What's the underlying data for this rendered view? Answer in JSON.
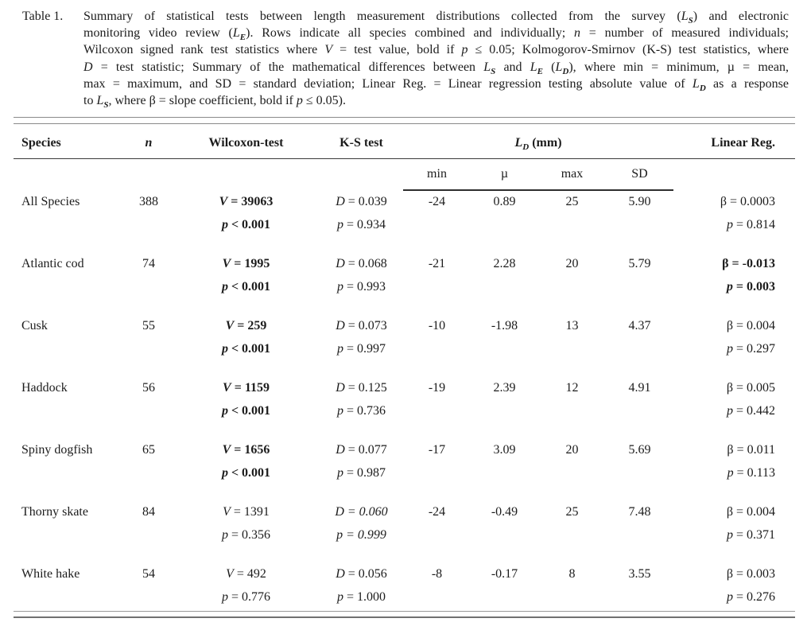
{
  "colors": {
    "background": "#ffffff",
    "text": "#1c1c1c",
    "rule_light": "#8a8a8a",
    "rule_dark": "#3a3a3a"
  },
  "caption": {
    "label": "Table 1.",
    "lines": [
      [
        {
          "t": "Summary of statistical tests between length measurement distributions collected from the survey ("
        },
        {
          "t": "L",
          "s": "i"
        },
        {
          "t": "S",
          "s": "isub"
        },
        {
          "t": ") and electronic"
        }
      ],
      [
        {
          "t": "monitoring video review ("
        },
        {
          "t": "L",
          "s": "i"
        },
        {
          "t": "E",
          "s": "isub"
        },
        {
          "t": "). Rows indicate all species combined and individually; "
        },
        {
          "t": "n",
          "s": "i"
        },
        {
          "t": " = number of measured individuals;"
        }
      ],
      [
        {
          "t": "Wilcoxon signed rank test statistics where "
        },
        {
          "t": "V",
          "s": "i"
        },
        {
          "t": " = test value, bold if "
        },
        {
          "t": "p",
          "s": "i"
        },
        {
          "t": " ≤ 0.05; Kolmogorov-Smirnov (K-S) test statistics, where"
        }
      ],
      [
        {
          "t": "D",
          "s": "i"
        },
        {
          "t": " = test statistic; Summary of the mathematical differences between "
        },
        {
          "t": "L",
          "s": "i"
        },
        {
          "t": "S",
          "s": "isub"
        },
        {
          "t": " and "
        },
        {
          "t": "L",
          "s": "i"
        },
        {
          "t": "E",
          "s": "isub"
        },
        {
          "t": " ("
        },
        {
          "t": "L",
          "s": "i"
        },
        {
          "t": "D",
          "s": "isub"
        },
        {
          "t": "), where min = minimum, µ = mean,"
        }
      ],
      [
        {
          "t": "max = maximum, and SD = standard deviation; Linear Reg. = Linear regression testing absolute value of "
        },
        {
          "t": "L",
          "s": "i"
        },
        {
          "t": "D",
          "s": "isub"
        },
        {
          "t": " as a response"
        }
      ],
      [
        {
          "t": "to "
        },
        {
          "t": "L",
          "s": "i"
        },
        {
          "t": "S",
          "s": "isub"
        },
        {
          "t": ", where β = slope coefficient, bold if "
        },
        {
          "t": "p",
          "s": "i"
        },
        {
          "t": " ≤ 0.05)."
        }
      ]
    ]
  },
  "table": {
    "header": {
      "species": "Species",
      "n": "n",
      "wilcoxon": "Wilcoxon-test",
      "ks": "K-S test",
      "ld": [
        {
          "t": "L",
          "s": "ib"
        },
        {
          "t": "D",
          "s": "ibsub"
        }
      ],
      "ld_unit": "(mm)",
      "linreg": "Linear Reg.",
      "sub": {
        "min": "min",
        "mu": "µ",
        "max": "max",
        "sd": "SD"
      }
    },
    "rows": [
      {
        "species": "All Species",
        "n": "388",
        "w_sym": "V",
        "w_val": "= 39063",
        "wp_sym": "p",
        "wp_val": "< 0.001",
        "k_sym": "D",
        "k_val": "= 0.039",
        "kp_sym": "p",
        "kp_val": "= 0.934",
        "min": "-24",
        "mu": "0.89",
        "max": "25",
        "sd": "5.90",
        "b_sym": "β",
        "b_val": "= 0.0003",
        "bp_sym": "p",
        "bp_val": "= 0.814"
      },
      {
        "species": "Atlantic cod",
        "n": "74",
        "w_sym": "V",
        "w_val": "= 1995",
        "wp_sym": "p",
        "wp_val": "< 0.001",
        "k_sym": "D",
        "k_val": "= 0.068",
        "kp_sym": "p",
        "kp_val": "= 0.993",
        "min": "-21",
        "mu": "2.28",
        "max": "20",
        "sd": "5.79",
        "b_sym": "β",
        "b_val": "= -0.013",
        "bp_sym": "p",
        "bp_val": "= 0.003"
      },
      {
        "species": "Cusk",
        "n": "55",
        "w_sym": "V",
        "w_val": "= 259",
        "wp_sym": "p",
        "wp_val": "< 0.001",
        "k_sym": "D",
        "k_val": "= 0.073",
        "kp_sym": "p",
        "kp_val": "= 0.997",
        "min": "-10",
        "mu": "-1.98",
        "max": "13",
        "sd": "4.37",
        "b_sym": "β",
        "b_val": "= 0.004",
        "bp_sym": "p",
        "bp_val": "= 0.297"
      },
      {
        "species": "Haddock",
        "n": "56",
        "w_sym": "V",
        "w_val": "= 1159",
        "wp_sym": "p",
        "wp_val": "< 0.001",
        "k_sym": "D",
        "k_val": "= 0.125",
        "kp_sym": "p",
        "kp_val": "= 0.736",
        "min": "-19",
        "mu": "2.39",
        "max": "12",
        "sd": "4.91",
        "b_sym": "β",
        "b_val": "= 0.005",
        "bp_sym": "p",
        "bp_val": "= 0.442"
      },
      {
        "species": "Spiny dogfish",
        "n": "65",
        "w_sym": "V",
        "w_val": "= 1656",
        "wp_sym": "p",
        "wp_val": "< 0.001",
        "k_sym": "D",
        "k_val": "= 0.077",
        "kp_sym": "p",
        "kp_val": "= 0.987",
        "min": "-17",
        "mu": "3.09",
        "max": "20",
        "sd": "5.69",
        "b_sym": "β",
        "b_val": "= 0.011",
        "bp_sym": "p",
        "bp_val": "= 0.113"
      },
      {
        "species": "Thorny skate",
        "n": "84",
        "w_sym": "V",
        "w_val": "= 1391",
        "wp_sym": "p",
        "wp_val": "= 0.356",
        "k_sym": "D",
        "k_val": "= 0.060",
        "kp_sym": "p",
        "kp_val": "= 0.999",
        "min": "-24",
        "mu": "-0.49",
        "max": "25",
        "sd": "7.48",
        "b_sym": "β",
        "b_val": "= 0.004",
        "bp_sym": "p",
        "bp_val": "= 0.371"
      },
      {
        "species": "White hake",
        "n": "54",
        "w_sym": "V",
        "w_val": "= 492",
        "wp_sym": "p",
        "wp_val": "= 0.776",
        "k_sym": "D",
        "k_val": "= 0.056",
        "kp_sym": "p",
        "kp_val": "= 1.000",
        "min": "-8",
        "mu": "-0.17",
        "max": "8",
        "sd": "3.55",
        "b_sym": "β",
        "b_val": "= 0.003",
        "bp_sym": "p",
        "bp_val": "= 0.276"
      }
    ]
  }
}
